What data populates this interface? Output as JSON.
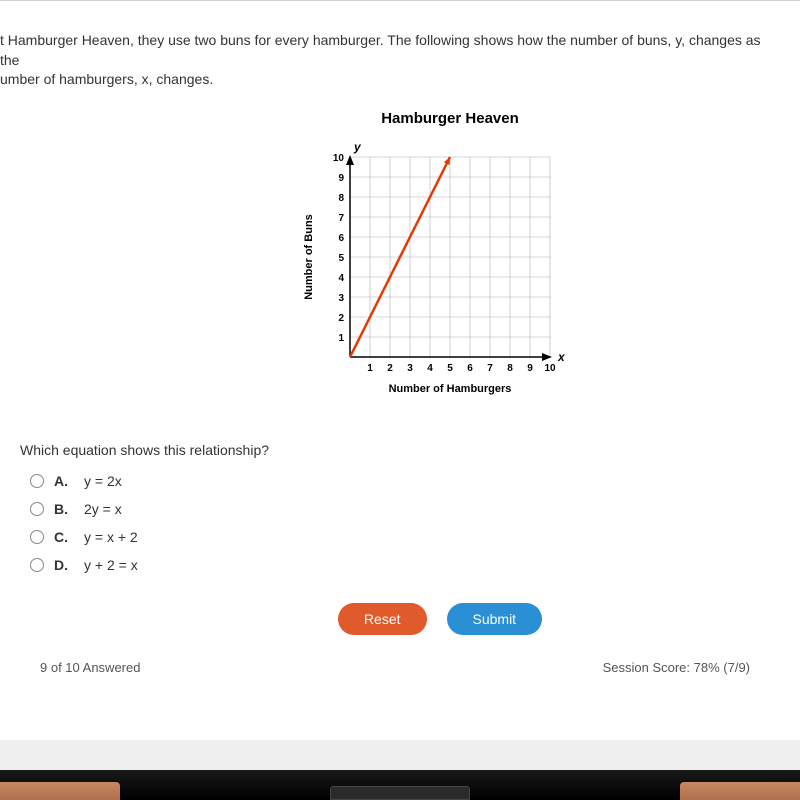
{
  "problem": {
    "line1": "t Hamburger Heaven, they use two buns for every hamburger. The following shows how the number of buns, y, changes as the",
    "line2": "umber of hamburgers, x, changes."
  },
  "chart": {
    "title": "Hamburger Heaven",
    "ylabel": "Number of Buns",
    "xlabel": "Number of Hamburgers",
    "y_axis_letter": "y",
    "x_axis_letter": "x",
    "x_ticks": [
      1,
      2,
      3,
      4,
      5,
      6,
      7,
      8,
      9,
      10
    ],
    "y_ticks": [
      1,
      2,
      3,
      4,
      5,
      6,
      7,
      8,
      9,
      10
    ],
    "grid_size": 200,
    "line_color": "#e63900",
    "line_width": 2.5,
    "grid_color": "#b0b0b0",
    "axis_color": "#000000",
    "line_start": [
      0,
      0
    ],
    "line_end": [
      5,
      10
    ],
    "tick_fontsize": 10,
    "label_fontsize": 11
  },
  "question": "Which equation shows this relationship?",
  "options": [
    {
      "letter": "A.",
      "text": "y = 2x"
    },
    {
      "letter": "B.",
      "text": "2y = x"
    },
    {
      "letter": "C.",
      "text": "y = x + 2"
    },
    {
      "letter": "D.",
      "text": "y + 2 = x"
    }
  ],
  "buttons": {
    "reset": {
      "label": "Reset",
      "bg": "#e05a2b"
    },
    "submit": {
      "label": "Submit",
      "bg": "#2b8fd6"
    }
  },
  "footer": {
    "progress": "9 of 10 Answered",
    "score": "Session Score: 78% (7/9)"
  }
}
